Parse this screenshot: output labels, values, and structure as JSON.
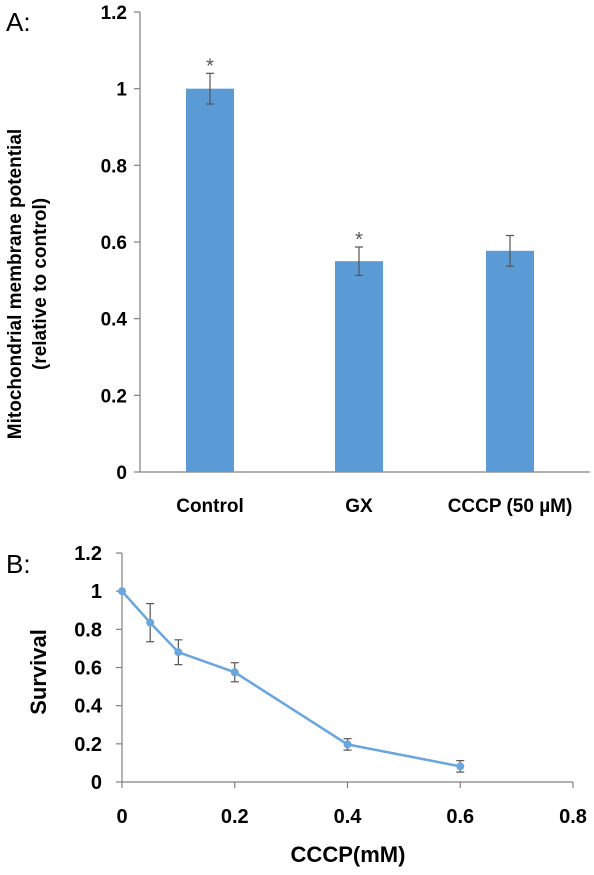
{
  "chart_data": [
    {
      "panel_label": "A:",
      "type": "bar",
      "categories": [
        "Control",
        "GX",
        "CCCP (50 µM)"
      ],
      "values": [
        1.0,
        0.55,
        0.577
      ],
      "errors": [
        0.04,
        0.037,
        0.04
      ],
      "annotations": [
        "*",
        "*",
        ""
      ],
      "ylabel": "Mitochondrial membrane potential",
      "ylabel2": "(relative to control)",
      "ylim": [
        0,
        1.2
      ],
      "yticks": [
        "0",
        "0.2",
        "0.4",
        "0.6",
        "0.8",
        "1",
        "1.2"
      ],
      "grid": false,
      "bar_color": "#5b9bd5"
    },
    {
      "panel_label": "B:",
      "type": "line",
      "x": [
        0,
        0.05,
        0.1,
        0.2,
        0.4,
        0.6
      ],
      "y": [
        1.0,
        0.835,
        0.68,
        0.575,
        0.197,
        0.082
      ],
      "errors": [
        0.0,
        0.1,
        0.065,
        0.05,
        0.03,
        0.03
      ],
      "xlabel": "CCCP(mM)",
      "ylabel": "Survival",
      "xlim": [
        0,
        0.8
      ],
      "ylim": [
        0,
        1.2
      ],
      "xticks": [
        "0",
        "0.2",
        "0.4",
        "0.6",
        "0.8"
      ],
      "yticks": [
        "0",
        "0.2",
        "0.4",
        "0.6",
        "0.8",
        "1",
        "1.2"
      ],
      "grid": false,
      "line_color": "#6aa6de"
    }
  ]
}
